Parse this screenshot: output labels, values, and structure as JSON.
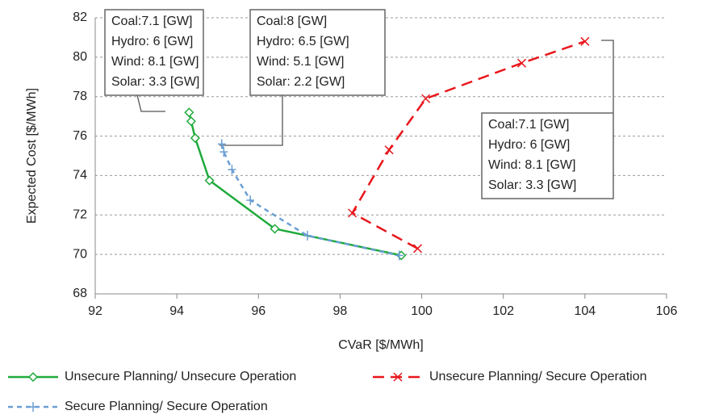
{
  "chart_data": {
    "type": "line",
    "xlabel": "CVaR [$/MWh]",
    "ylabel": "Expected Cost [$/MWh]",
    "xlim": [
      92,
      106
    ],
    "xticks": [
      92,
      94,
      96,
      98,
      100,
      102,
      104,
      106
    ],
    "ylim": [
      68,
      82
    ],
    "yticks": [
      68,
      70,
      72,
      74,
      76,
      78,
      80,
      82
    ],
    "grid": true,
    "series": [
      {
        "name": "Unsecure Planning/ Unsecure Operation",
        "color": "#1faa3c",
        "dash": "solid",
        "marker": "diamond",
        "x": [
          94.3,
          94.35,
          94.45,
          94.8,
          96.4,
          99.5
        ],
        "values": [
          77.2,
          76.75,
          75.9,
          73.75,
          71.3,
          69.95
        ]
      },
      {
        "name": "Unsecure Planning/ Secure Operation",
        "color": "#e8161b",
        "dash": "dashed",
        "marker": "x",
        "x": [
          99.9,
          98.3,
          99.2,
          100.1,
          102.45,
          104.0
        ],
        "values": [
          70.3,
          72.1,
          75.3,
          77.9,
          79.7,
          80.8
        ]
      },
      {
        "name": "Secure Planning/ Secure Operation",
        "color": "#6b9fd4",
        "dash": "dotted",
        "marker": "plus",
        "x": [
          95.1,
          95.15,
          95.35,
          95.8,
          97.2,
          99.45
        ],
        "values": [
          75.6,
          75.2,
          74.3,
          72.75,
          70.95,
          69.95
        ]
      }
    ],
    "annotations": [
      [
        "Coal:7.1 [GW]",
        "Hydro: 6 [GW]",
        "Wind: 8.1 [GW]",
        "Solar: 3.3 [GW]"
      ],
      [
        "Coal:8 [GW]",
        "Hydro: 6.5 [GW]",
        "Wind: 5.1 [GW]",
        "Solar: 2.2 [GW]"
      ],
      [
        "Coal:7.1 [GW]",
        "Hydro: 6 [GW]",
        "Wind: 8.1 [GW]",
        "Solar: 3.3 [GW]"
      ]
    ]
  }
}
